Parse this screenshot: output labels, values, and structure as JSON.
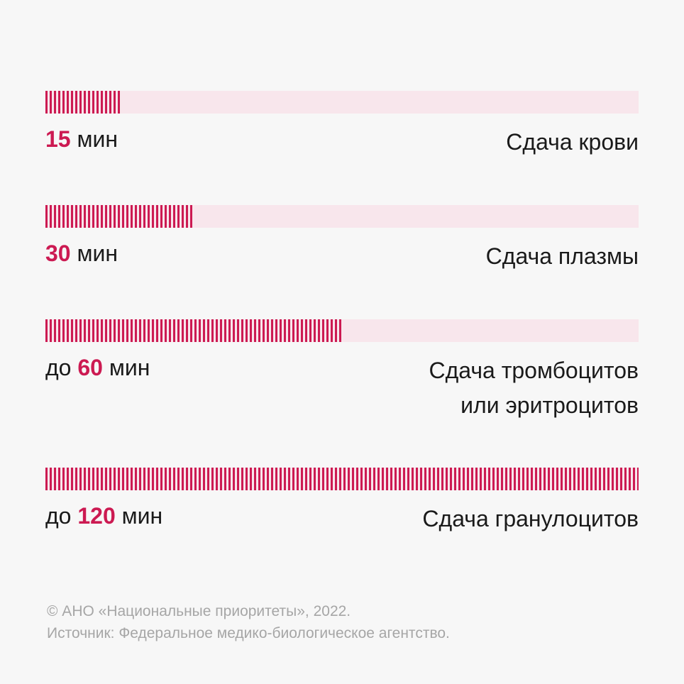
{
  "chart_data": {
    "type": "bar",
    "orientation": "horizontal",
    "xlim": [
      0,
      120
    ],
    "grid": false,
    "accent_color": "#cc1a52",
    "track_color": "#f8e6ec",
    "bars": [
      {
        "value": 15,
        "value_prefix": "",
        "value_text": "15",
        "unit": "мин",
        "category_lines": [
          "Сдача крови"
        ]
      },
      {
        "value": 30,
        "value_prefix": "",
        "value_text": "30",
        "unit": "мин",
        "category_lines": [
          "Сдача плазмы"
        ]
      },
      {
        "value": 60,
        "value_prefix": "до",
        "value_text": "60",
        "unit": "мин",
        "category_lines": [
          "Сдача тромбоцитов",
          "или эритроцитов"
        ]
      },
      {
        "value": 120,
        "value_prefix": "до",
        "value_text": "120",
        "unit": "мин",
        "category_lines": [
          "Сдача гранулоцитов"
        ]
      }
    ]
  },
  "footer": {
    "copyright": "© АНО «Национальные приоритеты», 2022.",
    "source": "Источник: Федеральное медико-биологическое агентство."
  }
}
